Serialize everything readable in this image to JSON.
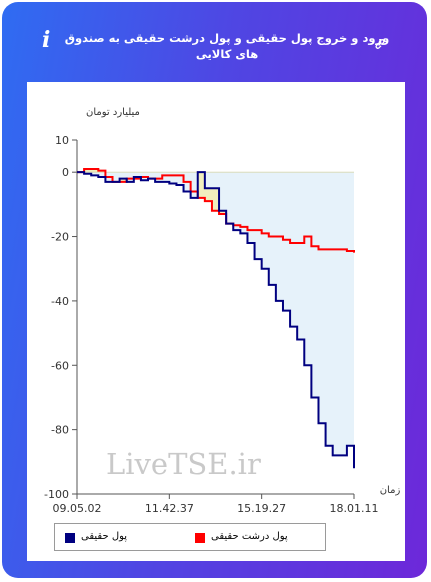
{
  "header": {
    "title": "ورود و خروج پول حقیقی و پول درشت حقیقی به صندوق های کالایی",
    "info_glyph": "i",
    "info_icon": "info-icon",
    "link_icon": "link-icon"
  },
  "watermark": "LiveTSE.ir",
  "chart_data": {
    "type": "line",
    "ylabel": "میلیارد تومان",
    "xlabel": "زمان",
    "ylim": [
      -100,
      10
    ],
    "yticks": [
      10,
      0,
      -20,
      -40,
      -60,
      -80,
      -100
    ],
    "xticks": [
      "09.05.02",
      "11.42.37",
      "15.19.27",
      "18.01.11"
    ],
    "x_points": 40,
    "series": [
      {
        "name": "پول حقیقی",
        "color": "#000080",
        "fill": "#e6f2fa",
        "values": [
          0,
          -0.5,
          -1,
          -1.5,
          -3,
          -3,
          -2,
          -3,
          -1.5,
          -2.5,
          -2,
          -3,
          -3,
          -3.5,
          -4,
          -6,
          -8,
          0,
          -5,
          -5,
          -12,
          -16,
          -18,
          -19,
          -22,
          -27,
          -30,
          -35,
          -40,
          -43,
          -48,
          -52,
          -60,
          -70,
          -78,
          -85,
          -88,
          -88,
          -85,
          -92
        ]
      },
      {
        "name": "پول درشت حقیقی",
        "color": "#ff0000",
        "fill": "#f1eebd",
        "values": [
          0,
          1,
          1,
          0.5,
          -1.5,
          -3,
          -3,
          -2,
          -2,
          -1.5,
          -2,
          -2,
          -1,
          -1,
          -1,
          -3,
          -6,
          -8,
          -9,
          -12,
          -13,
          -16,
          -16.5,
          -17,
          -18,
          -18,
          -19,
          -20,
          -20,
          -21,
          -22,
          -22,
          -20,
          -23,
          -24,
          -24,
          -24,
          -24,
          -24.5,
          -25
        ]
      }
    ]
  }
}
